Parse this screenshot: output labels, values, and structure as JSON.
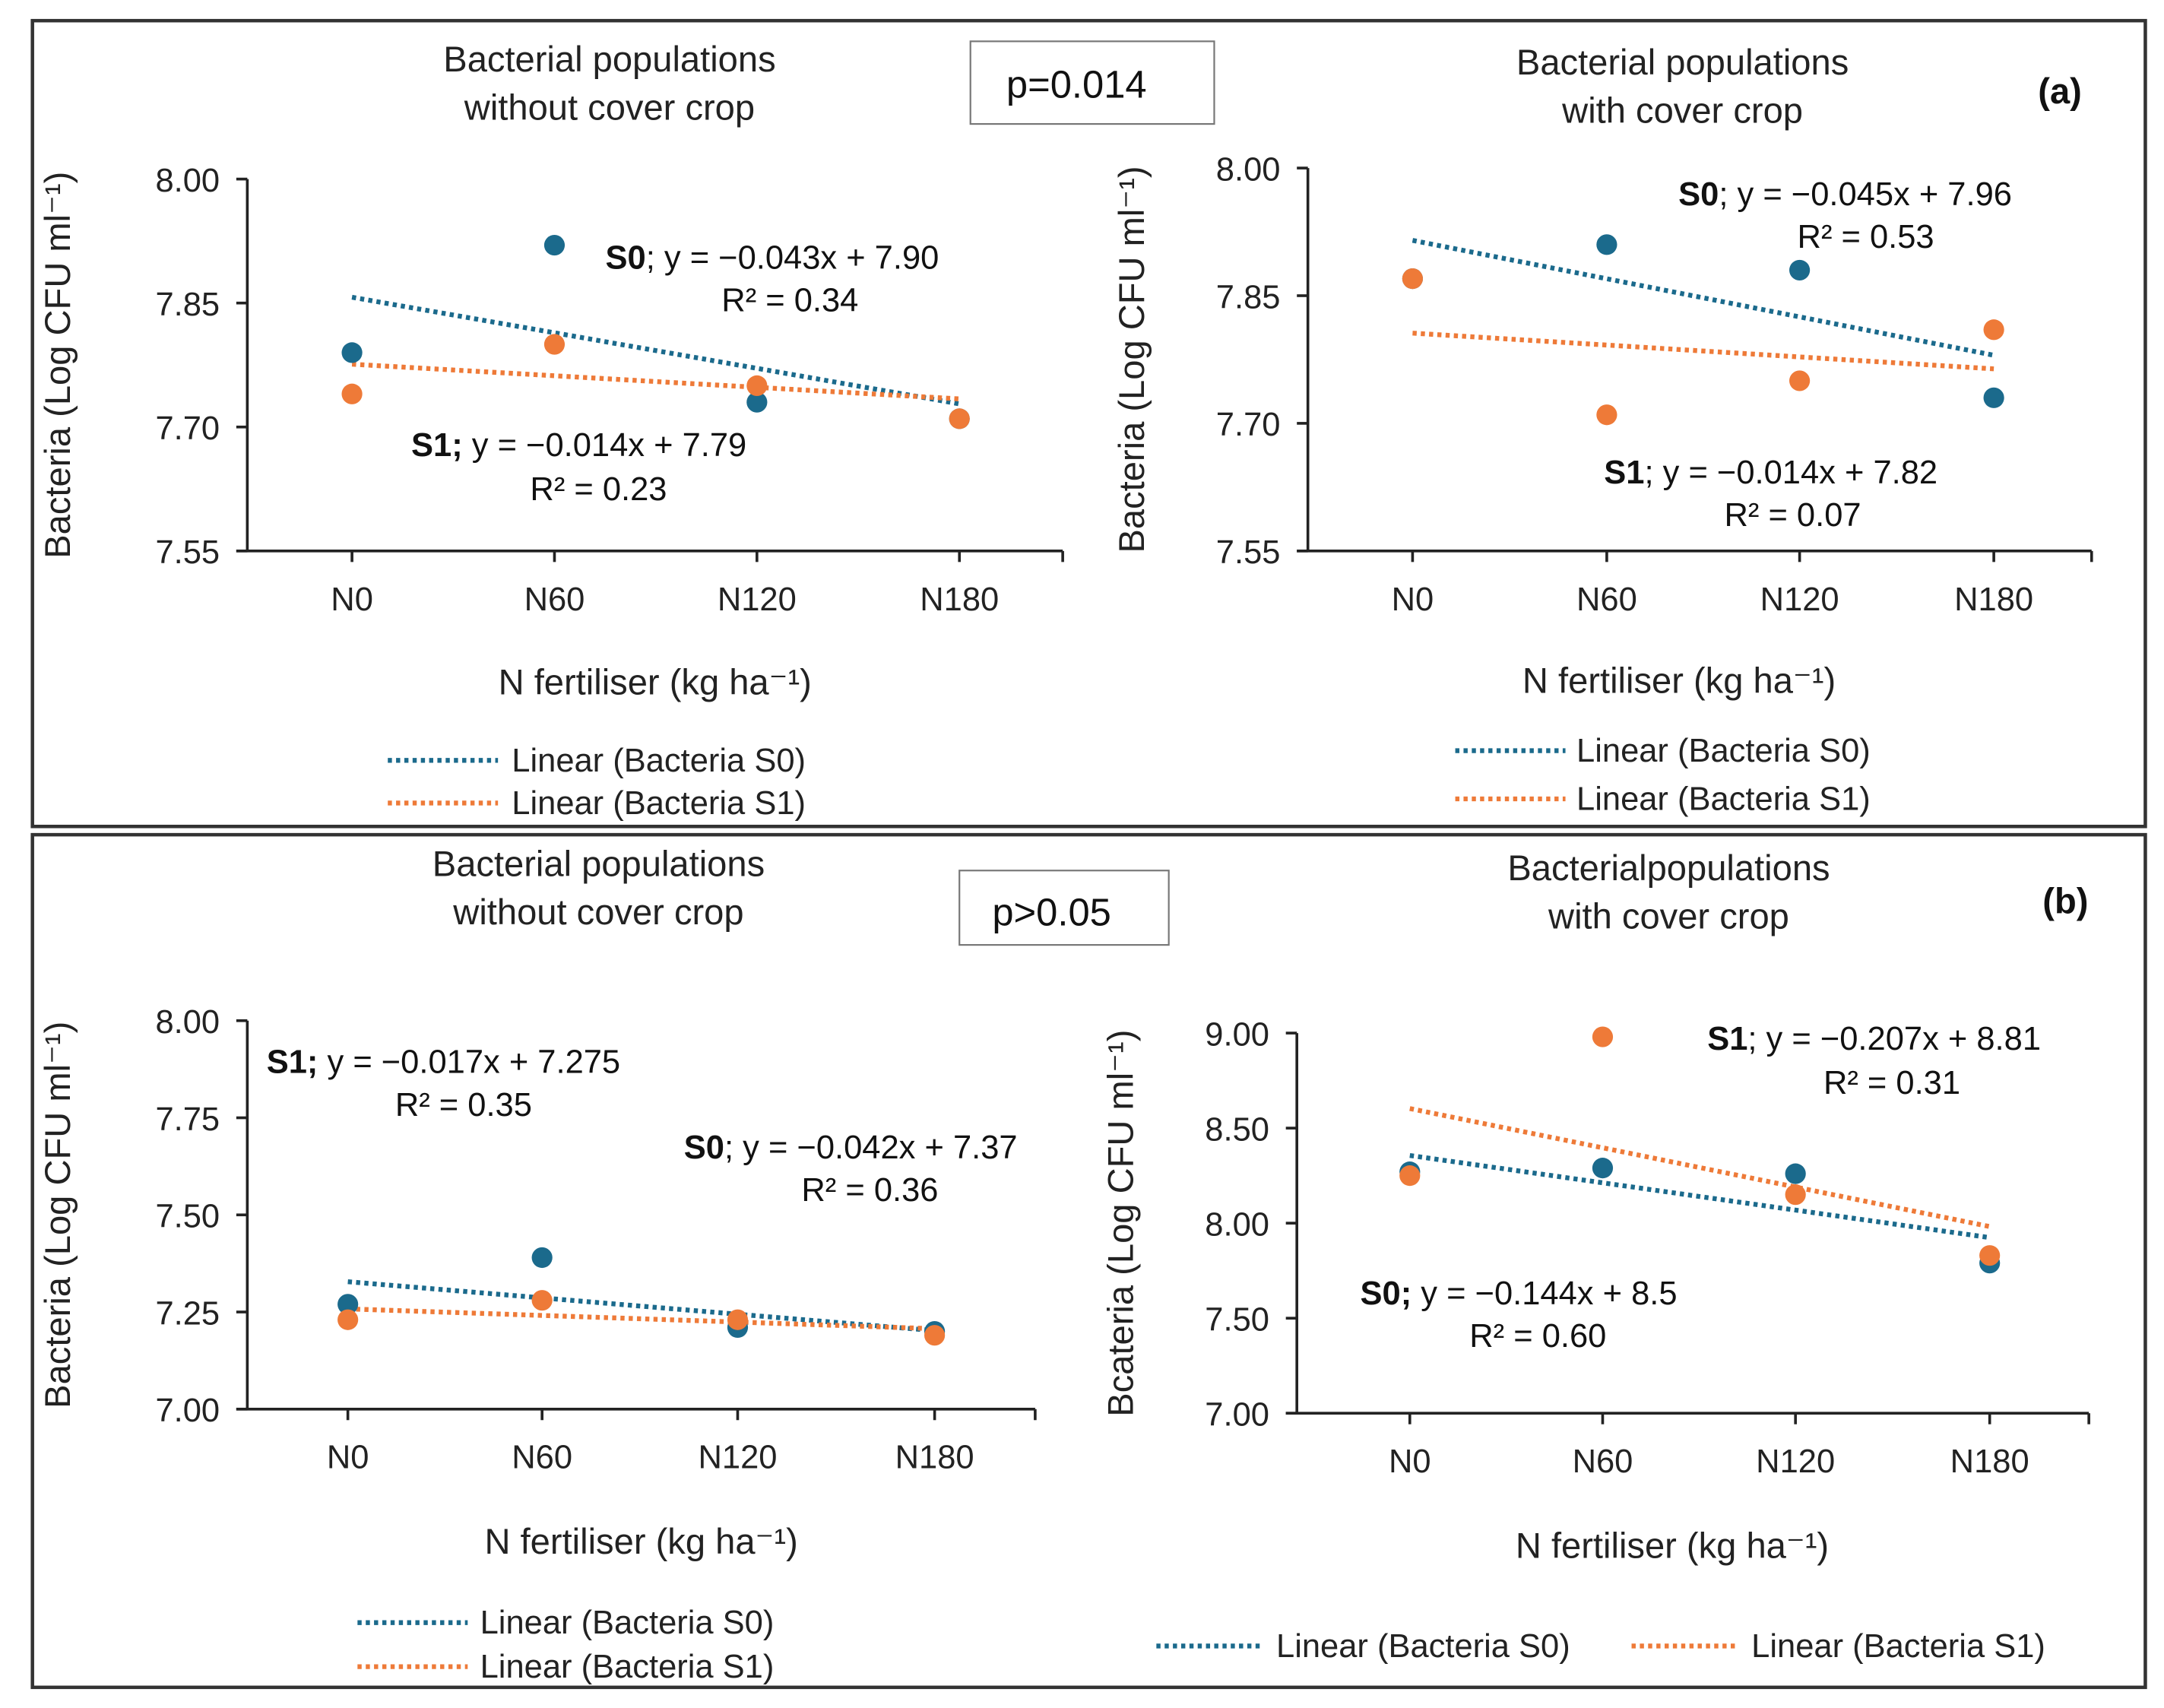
{
  "colors": {
    "S0": "#1b6a8c",
    "S1": "#ee7a38",
    "frame": "#333333"
  },
  "panels": [
    {
      "label": "(a)",
      "p_value": "p=0.014"
    },
    {
      "label": "(b)",
      "p_value": "p>0.05"
    }
  ],
  "chart_data": [
    {
      "type": "scatter",
      "title": [
        "Bacterial populations",
        "without cover crop"
      ],
      "xlabel": "N fertiliser (kg ha⁻¹)",
      "ylabel": "Bacteria (Log CFU ml⁻¹)",
      "categories": [
        "N0",
        "N60",
        "N120",
        "N180"
      ],
      "ylim": [
        7.55,
        8.0
      ],
      "yticks": [
        "7.55",
        "7.70",
        "7.85",
        "8.00"
      ],
      "series": [
        {
          "name": "Bacteria S0",
          "key": "S0",
          "values": [
            7.79,
            7.92,
            7.73,
            7.71
          ],
          "trend": {
            "slope": -0.043,
            "intercept": 7.9
          },
          "eq_label": "S0",
          "eq_text": "; y = −0.043x + 7.90",
          "r2": "R² = 0.34"
        },
        {
          "name": "Bacteria S1",
          "key": "S1",
          "values": [
            7.74,
            7.8,
            7.75,
            7.71
          ],
          "trend": {
            "slope": -0.014,
            "intercept": 7.79
          },
          "eq_label": "S1;",
          "eq_text": " y = −0.014x + 7.79",
          "r2": "R² = 0.23"
        }
      ],
      "legend": [
        "Linear (Bacteria S0)",
        "Linear (Bacteria S1)"
      ]
    },
    {
      "type": "scatter",
      "title": [
        "Bacterial populations",
        "with cover crop"
      ],
      "xlabel": "N fertiliser (kg ha⁻¹)",
      "ylabel": "Bacteria (Log CFU ml⁻¹)",
      "categories": [
        "N0",
        "N60",
        "N120",
        "N180"
      ],
      "ylim": [
        7.55,
        8.0
      ],
      "yticks": [
        "7.55",
        "7.70",
        "7.85",
        "8.00"
      ],
      "series": [
        {
          "name": "Bacteria S0",
          "key": "S0",
          "values": [
            7.87,
            7.91,
            7.88,
            7.73
          ],
          "trend": {
            "slope": -0.045,
            "intercept": 7.96
          },
          "eq_label": "S0",
          "eq_text": "; y = −0.045x + 7.96",
          "r2": "R² = 0.53"
        },
        {
          "name": "Bacteria S1",
          "key": "S1",
          "values": [
            7.87,
            7.71,
            7.75,
            7.81
          ],
          "trend": {
            "slope": -0.014,
            "intercept": 7.82
          },
          "eq_label": "S1",
          "eq_text": "; y = −0.014x + 7.82",
          "r2": "R² = 0.07"
        }
      ],
      "legend": [
        "Linear (Bacteria S0)",
        "Linear (Bacteria S1)"
      ]
    },
    {
      "type": "scatter",
      "title": [
        "Bacterial populations",
        "without cover crop"
      ],
      "xlabel": "N fertiliser (kg ha⁻¹)",
      "ylabel": "Bacteria (Log CFU ml⁻¹)",
      "categories": [
        "N0",
        "N60",
        "N120",
        "N180"
      ],
      "ylim": [
        7.0,
        8.0
      ],
      "yticks": [
        "7.00",
        "7.25",
        "7.50",
        "7.75",
        "8.00"
      ],
      "series": [
        {
          "name": "Bacteria S0",
          "key": "S0",
          "values": [
            7.27,
            7.39,
            7.21,
            7.2
          ],
          "trend": {
            "slope": -0.042,
            "intercept": 7.37
          },
          "eq_label": "S0",
          "eq_text": "; y = −0.042x + 7.37",
          "r2": "R² = 0.36"
        },
        {
          "name": "Bacteria S1",
          "key": "S1",
          "values": [
            7.23,
            7.28,
            7.23,
            7.19
          ],
          "trend": {
            "slope": -0.017,
            "intercept": 7.275
          },
          "eq_label": "S1;",
          "eq_text": " y = −0.017x + 7.275",
          "r2": "R² = 0.35"
        }
      ],
      "legend": [
        "Linear (Bacteria S0)",
        "Linear (Bacteria S1)"
      ]
    },
    {
      "type": "scatter",
      "title": [
        "Bacterialpopulations",
        "with cover crop"
      ],
      "xlabel": "N fertiliser (kg ha⁻¹)",
      "ylabel": "Bcateria (Log CFU ml⁻¹)",
      "categories": [
        "N0",
        "N60",
        "N120",
        "N180"
      ],
      "ylim": [
        7.0,
        9.0
      ],
      "yticks": [
        "7.00",
        "7.50",
        "8.00",
        "8.50",
        "9.00"
      ],
      "series": [
        {
          "name": "Bacteria S0",
          "key": "S0",
          "values": [
            8.27,
            8.29,
            8.26,
            7.79
          ],
          "trend": {
            "slope": -0.144,
            "intercept": 8.5
          },
          "eq_label": "S0;",
          "eq_text": " y = −0.144x + 8.5",
          "r2": "R² = 0.60"
        },
        {
          "name": "Bacteria S1",
          "key": "S1",
          "values": [
            8.25,
            8.98,
            8.15,
            7.83
          ],
          "trend": {
            "slope": -0.207,
            "intercept": 8.81
          },
          "eq_label": "S1",
          "eq_text": "; y = −0.207x + 8.81",
          "r2": "R² = 0.31"
        }
      ],
      "legend": [
        "Linear (Bacteria S0)",
        "Linear (Bacteria S1)"
      ]
    }
  ]
}
